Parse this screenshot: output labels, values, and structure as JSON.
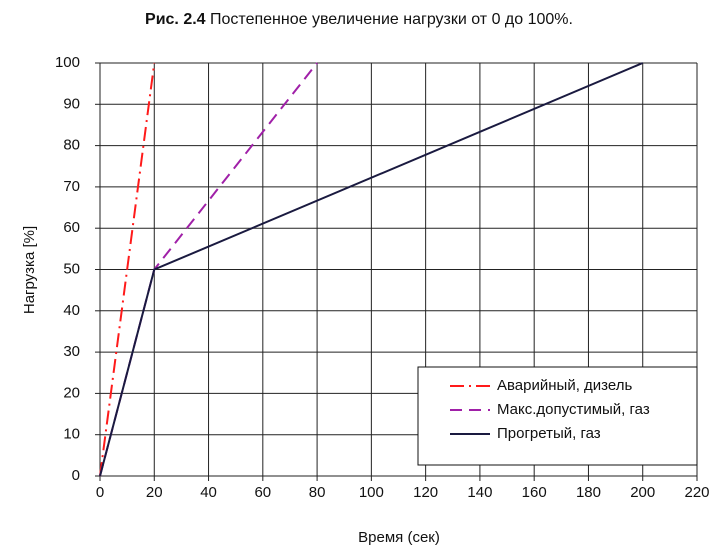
{
  "chart_data": {
    "type": "line",
    "figure_label": "Рис. 2.4",
    "title": "Постепенное увеличение нагрузки от 0 до 100%.",
    "xlabel": "Время (сек)",
    "ylabel": "Нагрузка [%]",
    "xlim": [
      0,
      220
    ],
    "xticks": [
      0,
      20,
      40,
      60,
      80,
      100,
      120,
      140,
      160,
      180,
      200,
      220
    ],
    "ylim": [
      0,
      100
    ],
    "yticks": [
      0,
      10,
      20,
      30,
      40,
      50,
      60,
      70,
      80,
      90,
      100
    ],
    "grid": true,
    "legend": "lower right",
    "series": [
      {
        "name": "Аварийный, дизель",
        "color": "#ff1a1a",
        "dash": "dashdot",
        "x": [
          0,
          20
        ],
        "values": [
          0,
          100
        ]
      },
      {
        "name": "Макс.допустимый, газ",
        "color": "#a020a8",
        "dash": "dashed",
        "x": [
          0,
          20,
          80
        ],
        "values": [
          0,
          50,
          100
        ]
      },
      {
        "name": "Прогретый, газ",
        "color": "#1a1a40",
        "dash": "solid",
        "x": [
          0,
          20,
          200
        ],
        "values": [
          0,
          50,
          100
        ]
      }
    ]
  }
}
